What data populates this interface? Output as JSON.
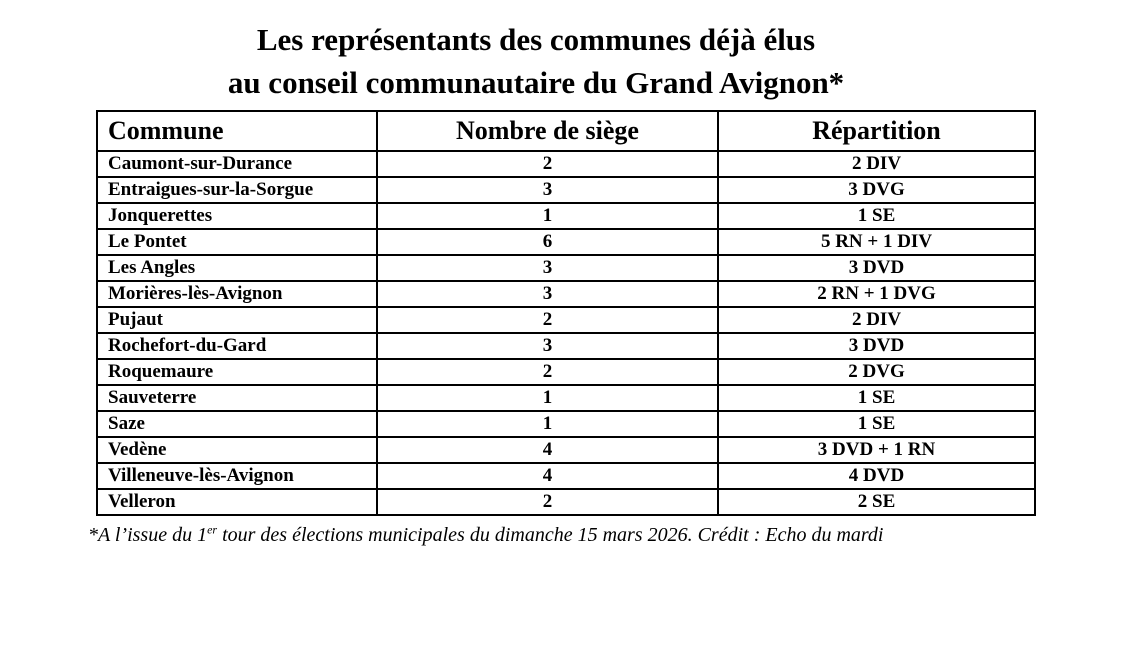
{
  "title": {
    "line1": "Les représentants des communes déjà élus",
    "line2": "au conseil communautaire du Grand Avignon*"
  },
  "chart_data": {
    "type": "table",
    "title": "Les représentants des communes déjà élus au conseil communautaire du Grand Avignon*",
    "headers": [
      "Commune",
      "Nombre de siège",
      "Répartition"
    ],
    "rows": [
      [
        "Caumont-sur-Durance",
        "2",
        "2 DIV"
      ],
      [
        "Entraigues-sur-la-Sorgue",
        "3",
        "3 DVG"
      ],
      [
        "Jonquerettes",
        "1",
        "1 SE"
      ],
      [
        "Le Pontet",
        "6",
        "5 RN + 1 DIV"
      ],
      [
        "Les Angles",
        "3",
        "3 DVD"
      ],
      [
        "Morières-lès-Avignon",
        "3",
        "2 RN + 1 DVG"
      ],
      [
        "Pujaut",
        "2",
        "2 DIV"
      ],
      [
        "Rochefort-du-Gard",
        "3",
        "3 DVD"
      ],
      [
        "Roquemaure",
        "2",
        "2 DVG"
      ],
      [
        "Sauveterre",
        "1",
        "1 SE"
      ],
      [
        "Saze",
        "1",
        "1 SE"
      ],
      [
        "Vedène",
        "4",
        "3 DVD + 1 RN"
      ],
      [
        "Villeneuve-lès-Avignon",
        "4",
        "4 DVD"
      ],
      [
        "Velleron",
        "2",
        "2 SE"
      ]
    ],
    "footnote": "*A l’issue du 1er tour des élections municipales du dimanche 15 mars 2026. Crédit : Echo du mardi"
  },
  "footnote": {
    "prefix": "*A l’issue du 1",
    "superscript": "er",
    "suffix": " tour des élections municipales du dimanche 15 mars 2026. Crédit : Echo du mardi"
  },
  "colors": {
    "text": "#000000",
    "background": "#ffffff",
    "border": "#000000"
  }
}
